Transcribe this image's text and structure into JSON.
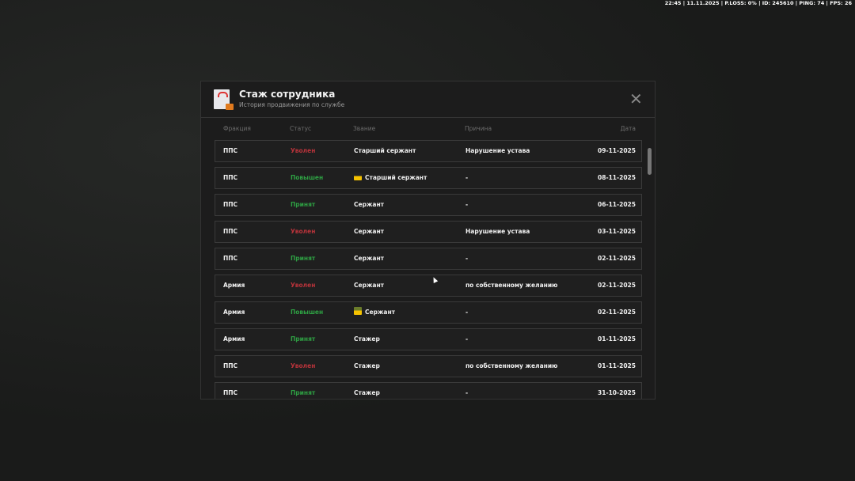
{
  "hud": "22:45 | 11.11.2025 | P.LOSS: 0% | ID: 245610 | PING: 74 | FPS: 26",
  "modal": {
    "title": "Стаж сотрудника",
    "subtitle": "История продвижения по службе",
    "icon": "document-briefcase-icon",
    "close_icon": "close-icon"
  },
  "columns": [
    "Фракция",
    "Статус",
    "Звание",
    "Причина",
    "Дата"
  ],
  "colors": {
    "fired": "#b8333a",
    "promoted": "#2ea043",
    "accepted": "#2ea043"
  },
  "rows": [
    {
      "faction": "ППС",
      "status": "Уволен",
      "rank": "Старший сержант",
      "reason": "Нарушение устава",
      "date": "09-11-2025",
      "icon": ""
    },
    {
      "faction": "ППС",
      "status": "Повышен",
      "rank": "Старший сержант",
      "reason": "-",
      "date": "08-11-2025",
      "icon": "rank-insignia-icon"
    },
    {
      "faction": "ППС",
      "status": "Принят",
      "rank": "Сержант",
      "reason": "-",
      "date": "06-11-2025",
      "icon": ""
    },
    {
      "faction": "ППС",
      "status": "Уволен",
      "rank": "Сержант",
      "reason": "Нарушение устава",
      "date": "03-11-2025",
      "icon": ""
    },
    {
      "faction": "ППС",
      "status": "Принят",
      "rank": "Сержант",
      "reason": "-",
      "date": "02-11-2025",
      "icon": ""
    },
    {
      "faction": "Армия",
      "status": "Уволен",
      "rank": "Сержант",
      "reason": "по собственному желанию",
      "date": "02-11-2025",
      "icon": ""
    },
    {
      "faction": "Армия",
      "status": "Повышен",
      "rank": "Сержант",
      "reason": "-",
      "date": "02-11-2025",
      "icon": "rank-insignia-icon"
    },
    {
      "faction": "Армия",
      "status": "Принят",
      "rank": "Стажер",
      "reason": "-",
      "date": "01-11-2025",
      "icon": ""
    },
    {
      "faction": "ППС",
      "status": "Уволен",
      "rank": "Стажер",
      "reason": "по собственному желанию",
      "date": "01-11-2025",
      "icon": ""
    },
    {
      "faction": "ППС",
      "status": "Принят",
      "rank": "Стажер",
      "reason": "-",
      "date": "31-10-2025",
      "icon": ""
    }
  ]
}
